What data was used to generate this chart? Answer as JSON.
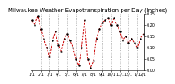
{
  "title": "Milwaukee Weather Evapotranspiration per Day (Inches)",
  "values": [
    0.22,
    0.2,
    0.24,
    0.18,
    0.14,
    0.1,
    0.06,
    0.13,
    0.17,
    0.11,
    0.08,
    0.14,
    0.16,
    0.13,
    0.1,
    0.05,
    0.02,
    0.1,
    0.22,
    0.05,
    0.01,
    0.04,
    0.14,
    0.18,
    0.21,
    0.22,
    0.23,
    0.2,
    0.23,
    0.2,
    0.17,
    0.13,
    0.15,
    0.12,
    0.14,
    0.12,
    0.1,
    0.14,
    0.16
  ],
  "x_tick_positions": [
    0,
    3,
    6,
    9,
    12,
    15,
    18,
    21,
    24,
    27,
    30,
    33,
    36,
    38
  ],
  "x_labels": [
    "1/1",
    "2/1",
    "3/1",
    "4/1",
    "5/1",
    "6/1",
    "7/1",
    "8/1",
    "9/1",
    "10/1",
    "11/1",
    "12/1",
    "1/1",
    "2/1"
  ],
  "vgrid_positions": [
    3,
    6,
    9,
    12,
    15,
    18,
    21,
    24,
    27,
    30,
    33,
    36
  ],
  "line_color": "#cc0000",
  "marker_color": "#000000",
  "ylim": [
    0.0,
    0.25
  ],
  "yticks": [
    0.0,
    0.05,
    0.1,
    0.15,
    0.2,
    0.25
  ],
  "ytick_labels": [
    "0.00",
    "0.05",
    "0.10",
    "0.15",
    "0.20",
    "0.25"
  ],
  "background_color": "#ffffff",
  "title_fontsize": 5.0,
  "tick_fontsize": 3.5,
  "line_width": 0.7,
  "marker_size": 1.5
}
